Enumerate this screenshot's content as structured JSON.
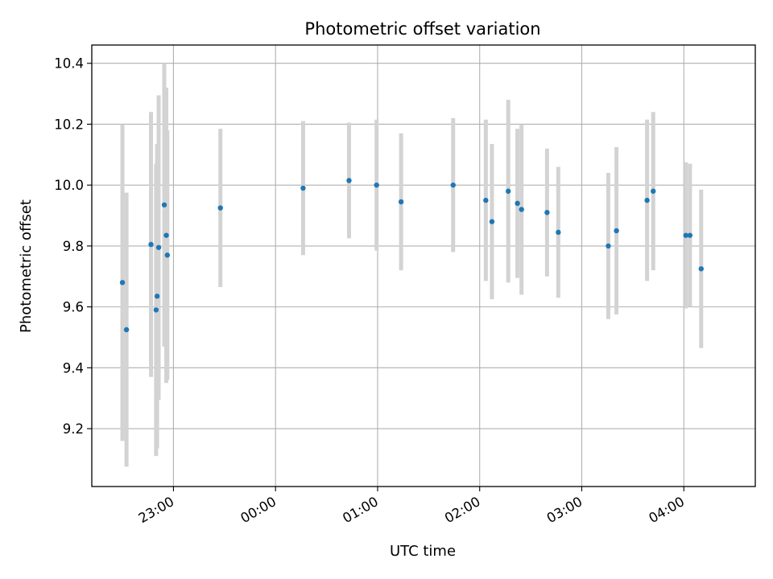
{
  "chart_data": {
    "type": "scatter",
    "title": "Photometric offset variation",
    "xlabel": "UTC time",
    "ylabel": "Photometric offset",
    "x_unit": "hours relative to 00:00 UTC",
    "xlim": [
      -1.8,
      4.7
    ],
    "ylim": [
      9.01,
      10.46
    ],
    "grid": true,
    "x_ticks": [
      {
        "value": -1.0,
        "label": "23:00"
      },
      {
        "value": 0.0,
        "label": "00:00"
      },
      {
        "value": 1.0,
        "label": "01:00"
      },
      {
        "value": 2.0,
        "label": "02:00"
      },
      {
        "value": 3.0,
        "label": "03:00"
      },
      {
        "value": 4.0,
        "label": "04:00"
      }
    ],
    "y_ticks": [
      {
        "value": 9.2,
        "label": "9.2"
      },
      {
        "value": 9.4,
        "label": "9.4"
      },
      {
        "value": 9.6,
        "label": "9.6"
      },
      {
        "value": 9.8,
        "label": "9.8"
      },
      {
        "value": 10.0,
        "label": "10.0"
      },
      {
        "value": 10.2,
        "label": "10.2"
      },
      {
        "value": 10.4,
        "label": "10.4"
      }
    ],
    "point_color": "#1f77b4",
    "errorbar_color": "#d3d3d3",
    "points": [
      {
        "x": -1.5,
        "y": 9.68,
        "err": 0.52
      },
      {
        "x": -1.46,
        "y": 9.525,
        "err": 0.45
      },
      {
        "x": -1.22,
        "y": 9.805,
        "err": 0.435
      },
      {
        "x": -1.17,
        "y": 9.59,
        "err": 0.48
      },
      {
        "x": -1.16,
        "y": 9.635,
        "err": 0.5
      },
      {
        "x": -1.145,
        "y": 9.795,
        "err": 0.5
      },
      {
        "x": -1.09,
        "y": 9.935,
        "err": 0.465
      },
      {
        "x": -1.07,
        "y": 9.835,
        "err": 0.485
      },
      {
        "x": -1.06,
        "y": 9.77,
        "err": 0.41
      },
      {
        "x": -0.54,
        "y": 9.925,
        "err": 0.26
      },
      {
        "x": 0.27,
        "y": 9.99,
        "err": 0.22
      },
      {
        "x": 0.72,
        "y": 10.015,
        "err": 0.19
      },
      {
        "x": 0.99,
        "y": 10.0,
        "err": 0.215
      },
      {
        "x": 1.23,
        "y": 9.945,
        "err": 0.225
      },
      {
        "x": 1.74,
        "y": 10.0,
        "err": 0.22
      },
      {
        "x": 2.06,
        "y": 9.95,
        "err": 0.265
      },
      {
        "x": 2.12,
        "y": 9.88,
        "err": 0.255
      },
      {
        "x": 2.28,
        "y": 9.98,
        "err": 0.3
      },
      {
        "x": 2.37,
        "y": 9.94,
        "err": 0.245
      },
      {
        "x": 2.41,
        "y": 9.92,
        "err": 0.28
      },
      {
        "x": 2.66,
        "y": 9.91,
        "err": 0.21
      },
      {
        "x": 2.77,
        "y": 9.845,
        "err": 0.215
      },
      {
        "x": 3.26,
        "y": 9.8,
        "err": 0.24
      },
      {
        "x": 3.34,
        "y": 9.85,
        "err": 0.275
      },
      {
        "x": 3.64,
        "y": 9.95,
        "err": 0.265
      },
      {
        "x": 3.7,
        "y": 9.98,
        "err": 0.26
      },
      {
        "x": 4.02,
        "y": 9.835,
        "err": 0.24
      },
      {
        "x": 4.06,
        "y": 9.835,
        "err": 0.235
      },
      {
        "x": 4.17,
        "y": 9.725,
        "err": 0.26
      }
    ]
  }
}
